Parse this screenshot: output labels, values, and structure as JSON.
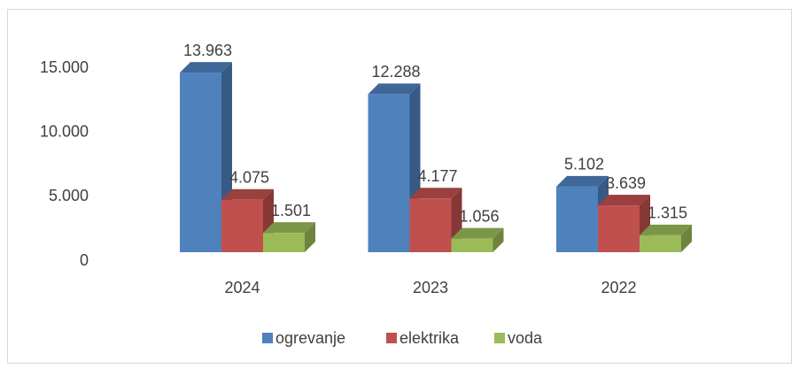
{
  "chart_data": {
    "type": "bar3d",
    "categories": [
      "2024",
      "2023",
      "2022"
    ],
    "series": [
      {
        "name": "ogrevanje",
        "color": "#4f81bd",
        "values": [
          13963,
          12288,
          5102
        ],
        "value_labels": [
          "13.963",
          "12.288",
          "5.102"
        ]
      },
      {
        "name": "elektrika",
        "color": "#c0504d",
        "values": [
          4075,
          4177,
          3639
        ],
        "value_labels": [
          "4.075",
          "4.177",
          "3.639"
        ]
      },
      {
        "name": "voda",
        "color": "#9bbb59",
        "values": [
          1501,
          1056,
          1315
        ],
        "value_labels": [
          "1.501",
          "1.056",
          "1.315"
        ]
      }
    ],
    "ylim": [
      0,
      15000
    ],
    "yticks": [
      0,
      {
        "value": 5000,
        "label": "5.000"
      },
      {
        "value": 10000,
        "label": "10.000"
      },
      {
        "value": 15000,
        "label": "15.000"
      }
    ],
    "legend": "bottom"
  }
}
